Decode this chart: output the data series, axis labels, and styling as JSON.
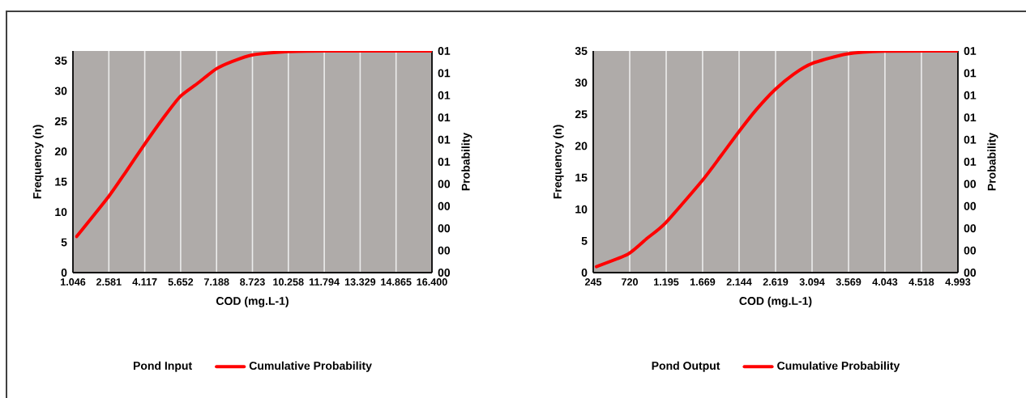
{
  "chart_data": [
    {
      "type": "line",
      "xlabel": "COD (mg.L-1)",
      "ylabel": "Frequency (n)",
      "y2label": "Probability",
      "legend_title": "Pond Input",
      "legend": "bottom",
      "grid": "x",
      "xlim": [
        1046,
        16400
      ],
      "xticks": [
        {
          "value": 1046,
          "label": "1.046"
        },
        {
          "value": 2581,
          "label": "2.581"
        },
        {
          "value": 4117,
          "label": "4.117"
        },
        {
          "value": 5652,
          "label": "5.652"
        },
        {
          "value": 7188,
          "label": "7.188"
        },
        {
          "value": 8723,
          "label": "8.723"
        },
        {
          "value": 10258,
          "label": "10.258"
        },
        {
          "value": 11794,
          "label": "11.794"
        },
        {
          "value": 13329,
          "label": "13.329"
        },
        {
          "value": 14865,
          "label": "14.865"
        },
        {
          "value": 16400,
          "label": "16.400"
        }
      ],
      "ylim": [
        0,
        36.6
      ],
      "yticks": [
        0,
        5,
        10,
        15,
        20,
        25,
        30,
        35
      ],
      "y2lim": [
        0,
        1
      ],
      "y2ticks": [
        {
          "value": 0,
          "label": "00"
        },
        {
          "value": 0.1,
          "label": "00"
        },
        {
          "value": 0.2,
          "label": "00"
        },
        {
          "value": 0.3,
          "label": "00"
        },
        {
          "value": 0.4,
          "label": "00"
        },
        {
          "value": 0.5,
          "label": "01"
        },
        {
          "value": 0.6,
          "label": "01"
        },
        {
          "value": 0.7,
          "label": "01"
        },
        {
          "value": 0.8,
          "label": "01"
        },
        {
          "value": 0.9,
          "label": "01"
        },
        {
          "value": 1,
          "label": "01"
        }
      ],
      "series": [
        {
          "name": "Cumulative Probability",
          "color": "#ff0000",
          "axis": "y2",
          "x": [
            1206,
            2578,
            3312,
            4109,
            4906,
            5638,
            6374,
            7174,
            7848,
            8708,
            10243,
            11778,
            16400
          ],
          "values": [
            0.163,
            0.344,
            0.455,
            0.579,
            0.697,
            0.795,
            0.854,
            0.919,
            0.952,
            0.982,
            0.997,
            1.0,
            1.0
          ]
        }
      ]
    },
    {
      "type": "line",
      "xlabel": "COD (mg.L-1)",
      "ylabel": "Frequency (n)",
      "y2label": "Probability",
      "legend_title": "Pond Output",
      "legend": "bottom",
      "grid": "x",
      "xlim": [
        245,
        4993
      ],
      "xticks": [
        245,
        720,
        {
          "value": 1195,
          "label": "1.195"
        },
        {
          "value": 1669,
          "label": "1.669"
        },
        {
          "value": 2144,
          "label": "2.144"
        },
        {
          "value": 2619,
          "label": "2.619"
        },
        {
          "value": 3094,
          "label": "3.094"
        },
        {
          "value": 3569,
          "label": "3.569"
        },
        {
          "value": 4043,
          "label": "4.043"
        },
        {
          "value": 4518,
          "label": "4.518"
        },
        {
          "value": 4993,
          "label": "4.993"
        }
      ],
      "ylim": [
        0,
        35
      ],
      "yticks": [
        0,
        5,
        10,
        15,
        20,
        25,
        30,
        35
      ],
      "y2lim": [
        0,
        1
      ],
      "y2ticks": [
        {
          "value": 0,
          "label": "00"
        },
        {
          "value": 0.1,
          "label": "00"
        },
        {
          "value": 0.2,
          "label": "00"
        },
        {
          "value": 0.3,
          "label": "00"
        },
        {
          "value": 0.4,
          "label": "00"
        },
        {
          "value": 0.5,
          "label": "01"
        },
        {
          "value": 0.6,
          "label": "01"
        },
        {
          "value": 0.7,
          "label": "01"
        },
        {
          "value": 0.8,
          "label": "01"
        },
        {
          "value": 0.9,
          "label": "01"
        },
        {
          "value": 1,
          "label": "01"
        }
      ],
      "series": [
        {
          "name": "Cumulative Probability",
          "color": "#ff0000",
          "axis": "y2",
          "x": [
            286,
            700,
            944,
            1186,
            1675,
            1917,
            2142,
            2365,
            2609,
            2852,
            3096,
            3544,
            4029,
            4993
          ],
          "values": [
            0.027,
            0.084,
            0.154,
            0.224,
            0.42,
            0.531,
            0.636,
            0.734,
            0.825,
            0.895,
            0.944,
            0.986,
            0.999,
            1.0
          ]
        }
      ]
    }
  ]
}
